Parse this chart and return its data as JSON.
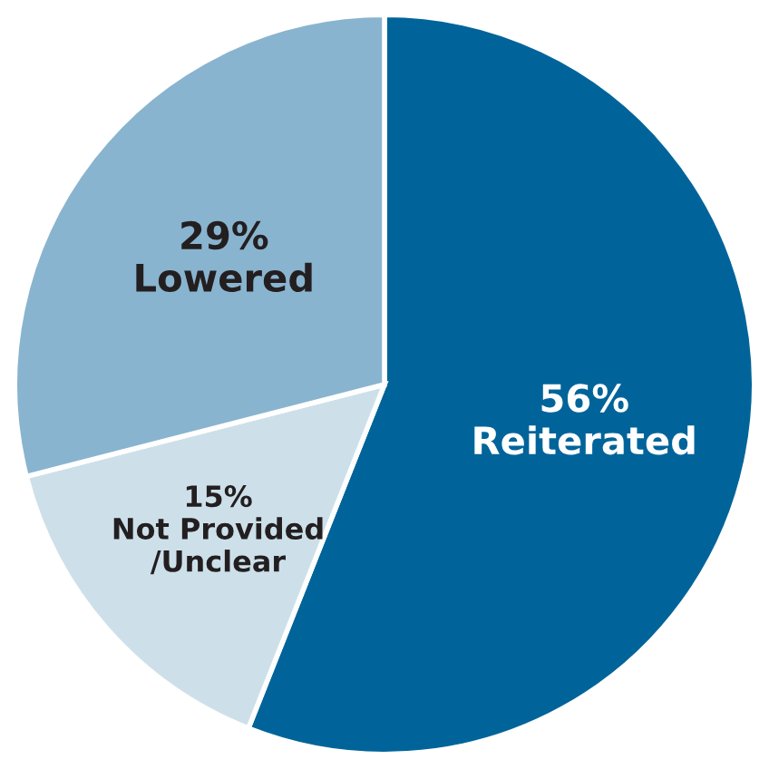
{
  "chart_data": {
    "type": "pie",
    "categories": [
      "Reiterated",
      "Not Provided\n/Unclear",
      "Lowered"
    ],
    "values": [
      56,
      15,
      29
    ],
    "colors": [
      "#00649a",
      "#cde0ea",
      "#89b4cf"
    ],
    "value_labels": [
      "56%",
      "15%",
      "29%"
    ]
  }
}
